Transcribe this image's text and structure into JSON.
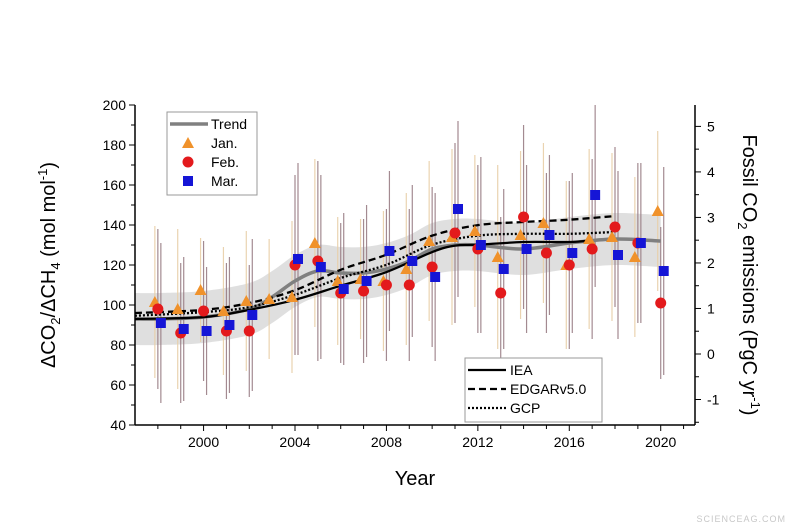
{
  "chart_data": {
    "type": "scatter",
    "xlabel": "Year",
    "ylabel": "ΔCO2/ΔCH4 (mol mol-1)",
    "ylabel_parts": {
      "delta1": "ΔCO",
      "sub1": "2",
      "slash": "/ΔCH",
      "sub2": "4",
      "unit": " (mol mol",
      "sup": "-1",
      "close": ")"
    },
    "y2label": "Fossil CO2 emissions (PgC yr-1)",
    "y2label_parts": {
      "a": "Fossil CO",
      "sub": "2",
      "b": " emissions (PgC yr",
      "sup": "-1",
      "c": ")"
    },
    "xlim": [
      1997,
      2021.5
    ],
    "ylim": [
      40,
      200
    ],
    "y2lim": [
      -1.56,
      5.47
    ],
    "xticks": [
      2000,
      2004,
      2008,
      2012,
      2016,
      2020
    ],
    "yticks": [
      40,
      60,
      80,
      100,
      120,
      140,
      160,
      180,
      200
    ],
    "y2ticks": [
      -1,
      0,
      1,
      2,
      3,
      4,
      5
    ],
    "grid": false,
    "colors": {
      "trend": "#808080",
      "band": "#d9d9d9",
      "jan": "#f0922b",
      "feb": "#e31a1c",
      "mar": "#1515d6",
      "errorbar": "#9a7e86"
    },
    "legend_markers": {
      "position": "top-left",
      "entries": [
        "Trend",
        "Jan.",
        "Feb.",
        "Mar."
      ]
    },
    "legend_lines": {
      "position": "bottom-center",
      "entries": [
        "IEA",
        "EDGARv5.0",
        "GCP"
      ]
    },
    "years": [
      1998,
      1999,
      2000,
      2001,
      2002,
      2003,
      2004,
      2005,
      2006,
      2007,
      2008,
      2009,
      2010,
      2011,
      2012,
      2013,
      2014,
      2015,
      2016,
      2017,
      2018,
      2019,
      2020
    ],
    "series": [
      {
        "name": "Jan.",
        "marker": "triangle",
        "values": [
          101.5,
          98,
          107.5,
          97,
          102,
          103,
          104,
          131,
          112,
          113,
          112,
          118,
          132,
          134,
          137,
          124,
          135,
          141,
          120,
          133,
          134,
          124,
          147
        ],
        "error": [
          38,
          40,
          26,
          32,
          35,
          30,
          38,
          42,
          32,
          30,
          35,
          38,
          40,
          44,
          38,
          46,
          42,
          40,
          42,
          45,
          42,
          40,
          40
        ]
      },
      {
        "name": "Feb.",
        "marker": "circle",
        "values": [
          98,
          86,
          97,
          87,
          87,
          null,
          120,
          122,
          106,
          107,
          110,
          110,
          119,
          136,
          128,
          106,
          144,
          126,
          120,
          128,
          139,
          131,
          101
        ],
        "error": [
          40,
          35,
          35,
          34,
          33,
          null,
          45,
          50,
          35,
          36,
          38,
          38,
          40,
          45,
          42,
          38,
          46,
          40,
          42,
          45,
          40,
          40,
          38
        ]
      },
      {
        "name": "Mar.",
        "marker": "square",
        "values": [
          91,
          88,
          87,
          90,
          95,
          null,
          123,
          119,
          108,
          112,
          127,
          122,
          114,
          148,
          130,
          118,
          128,
          135,
          126,
          155,
          125,
          131,
          117
        ],
        "error": [
          40,
          36,
          32,
          34,
          38,
          null,
          48,
          46,
          38,
          38,
          40,
          38,
          42,
          44,
          44,
          40,
          42,
          40,
          40,
          46,
          42,
          40,
          52
        ]
      }
    ],
    "trend": {
      "name": "Trend",
      "x": [
        1997,
        1998,
        2000,
        2002,
        2003,
        2004,
        2005,
        2006,
        2007,
        2008,
        2009,
        2010,
        2011,
        2012,
        2014,
        2016,
        2018,
        2020
      ],
      "values": [
        93,
        93,
        94,
        98,
        104,
        112,
        117,
        116,
        116,
        118,
        122,
        128,
        130,
        130,
        128,
        131,
        133,
        132
      ],
      "band": 13
    },
    "emissions": [
      {
        "name": "IEA",
        "style": "solid",
        "x": [
          1997,
          2000,
          2002,
          2004,
          2006,
          2008,
          2010,
          2011,
          2012,
          2014,
          2016,
          2017
        ],
        "values": [
          0.77,
          0.81,
          0.97,
          1.19,
          1.5,
          1.8,
          2.24,
          2.38,
          2.4,
          2.46,
          2.46,
          2.5
        ]
      },
      {
        "name": "EDGARv5.0",
        "style": "dashed",
        "x": [
          1997,
          2000,
          2002,
          2004,
          2006,
          2008,
          2010,
          2012,
          2014,
          2016,
          2018
        ],
        "values": [
          0.9,
          0.97,
          1.12,
          1.4,
          1.85,
          2.18,
          2.6,
          2.83,
          2.9,
          2.95,
          3.03
        ]
      },
      {
        "name": "GCP",
        "style": "dotted",
        "x": [
          1997,
          2000,
          2002,
          2004,
          2006,
          2008,
          2010,
          2012,
          2014,
          2016,
          2018
        ],
        "values": [
          0.84,
          0.92,
          1.03,
          1.3,
          1.67,
          1.96,
          2.4,
          2.6,
          2.64,
          2.64,
          2.68
        ]
      }
    ]
  },
  "watermark": "SCIENCEAG.COM"
}
